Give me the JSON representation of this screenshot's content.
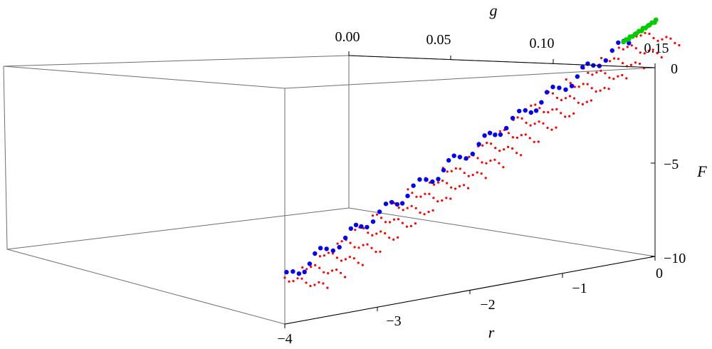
{
  "chart_data": {
    "type": "scatter",
    "projection": "3d",
    "title": "",
    "axes": {
      "g": {
        "label": "g",
        "range": [
          0,
          0.15
        ],
        "ticks": [
          "0.00",
          "0.05",
          "0.10",
          "0.15"
        ]
      },
      "F": {
        "label": "F",
        "range": [
          -10,
          0
        ],
        "ticks": [
          "0",
          "−5",
          "−10"
        ]
      },
      "r": {
        "label": "r",
        "range": [
          -4,
          0
        ],
        "ticks": [
          "0",
          "−1",
          "−2",
          "−3",
          "−4"
        ]
      }
    },
    "series": [
      {
        "color": "#ff0000",
        "marker": "small-dot",
        "grid": {
          "r": [
            -4,
            -0.2
          ],
          "g": [
            0,
            0.1
          ],
          "steps_r": 20,
          "steps_g": 10
        },
        "approx_relation": "F ≈ 2.4 r (falls linearly with r, nearly independent of g)"
      },
      {
        "color": "#0000ff",
        "marker": "dot",
        "approx_relation": "g ≈ 0 plane, F ≈ 2.4 r, r from -4 to -0.3"
      },
      {
        "color": "#00cc00",
        "marker": "dot",
        "approx_relation": "cluster near r ≈ 0, g ≈ 0, F ≈ 0"
      }
    ],
    "grid": false,
    "legend": "none",
    "box": true
  }
}
